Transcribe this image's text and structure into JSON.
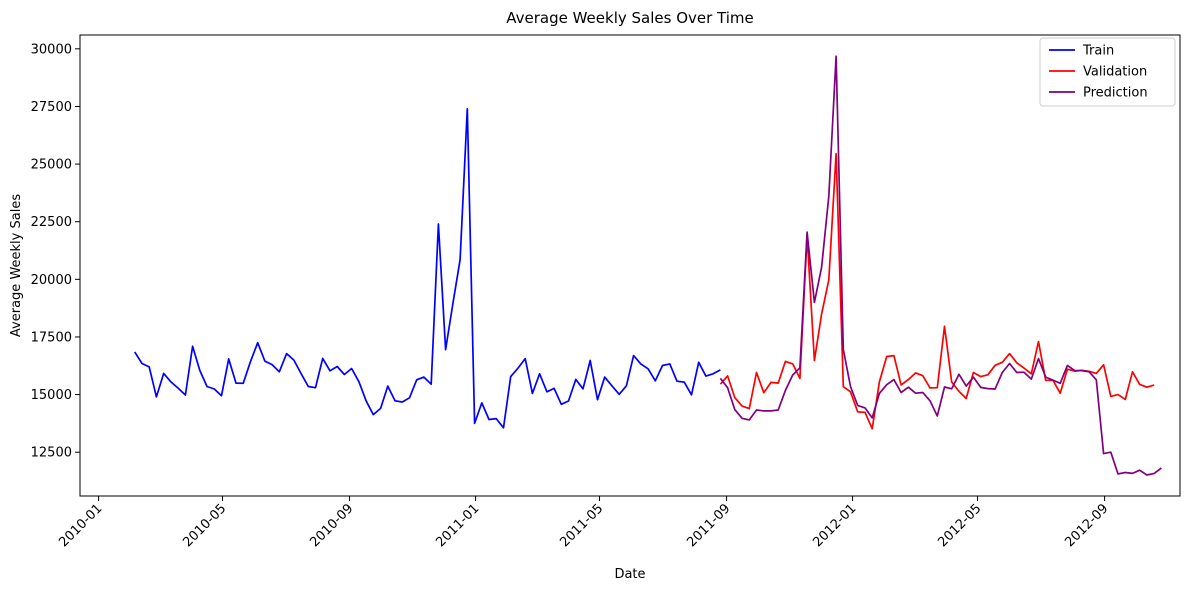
{
  "chart_data": {
    "type": "line",
    "title": "Average Weekly Sales Over Time",
    "xlabel": "Date",
    "ylabel": "Average Weekly Sales",
    "x_ticks": [
      "2010-01",
      "2010-05",
      "2010-09",
      "2011-01",
      "2011-05",
      "2011-09",
      "2012-01",
      "2012-05",
      "2012-09"
    ],
    "y_ticks": [
      12500,
      15000,
      17500,
      20000,
      22500,
      25000,
      27500,
      30000
    ],
    "xlim": [
      "2009-12-14",
      "2012-11-13"
    ],
    "ylim": [
      10600,
      30600
    ],
    "grid": false,
    "legend_position": "top-right",
    "series": [
      {
        "name": "Train",
        "color": "#0000ff",
        "start": "2010-02-05",
        "step_days": 7,
        "values": [
          16850,
          16350,
          16200,
          14900,
          15920,
          15550,
          15280,
          14980,
          17100,
          16050,
          15350,
          15240,
          14950,
          16550,
          15500,
          15490,
          16420,
          17250,
          16450,
          16300,
          15990,
          16780,
          16500,
          15920,
          15350,
          15300,
          16570,
          16030,
          16220,
          15870,
          16130,
          15560,
          14730,
          14130,
          14400,
          15370,
          14730,
          14680,
          14860,
          15640,
          15760,
          15450,
          22400,
          16950,
          18950,
          20850,
          27400,
          13750,
          14640,
          13920,
          13960,
          13560,
          15780,
          16140,
          16560,
          15050,
          15900,
          15120,
          15270,
          14580,
          14720,
          15660,
          15250,
          16480,
          14780,
          15760,
          15380,
          15010,
          15380,
          16690,
          16330,
          16120,
          15600,
          16260,
          16330,
          15580,
          15540,
          14990,
          16400,
          15800,
          15900,
          16070
        ]
      },
      {
        "name": "Validation",
        "color": "#ff0000",
        "start": "2011-08-26",
        "step_days": 7,
        "values": [
          15450,
          15810,
          14870,
          14500,
          14390,
          15960,
          15080,
          15530,
          15500,
          16440,
          16330,
          15700,
          21900,
          16480,
          18490,
          19970,
          25450,
          15340,
          15120,
          14250,
          14230,
          13520,
          15550,
          16650,
          16690,
          15420,
          15650,
          15940,
          15820,
          15290,
          15300,
          17960,
          15540,
          15140,
          14830,
          15960,
          15780,
          15860,
          16270,
          16400,
          16780,
          16380,
          16150,
          15900,
          17300,
          15620,
          15620,
          15060,
          16100,
          16020,
          16050,
          16010,
          15920,
          16290,
          14920,
          15000,
          14790,
          15990,
          15440,
          15320,
          15410
        ]
      },
      {
        "name": "Prediction",
        "color": "#800080",
        "start": "2011-08-26",
        "step_days": 7,
        "values": [
          15700,
          15300,
          14350,
          13970,
          13900,
          14330,
          14290,
          14290,
          14330,
          15180,
          15850,
          16160,
          22050,
          19000,
          20520,
          23600,
          29680,
          16960,
          15350,
          14530,
          14420,
          13990,
          15050,
          15430,
          15650,
          15090,
          15320,
          15060,
          15090,
          14730,
          14070,
          15330,
          15250,
          15880,
          15370,
          15760,
          15310,
          15260,
          15240,
          15960,
          16350,
          15960,
          15970,
          15670,
          16560,
          15760,
          15630,
          15490,
          16260,
          16040,
          16040,
          15990,
          15640,
          12440,
          12500,
          11560,
          11620,
          11580,
          11720,
          11510,
          11580,
          11820
        ]
      }
    ]
  }
}
